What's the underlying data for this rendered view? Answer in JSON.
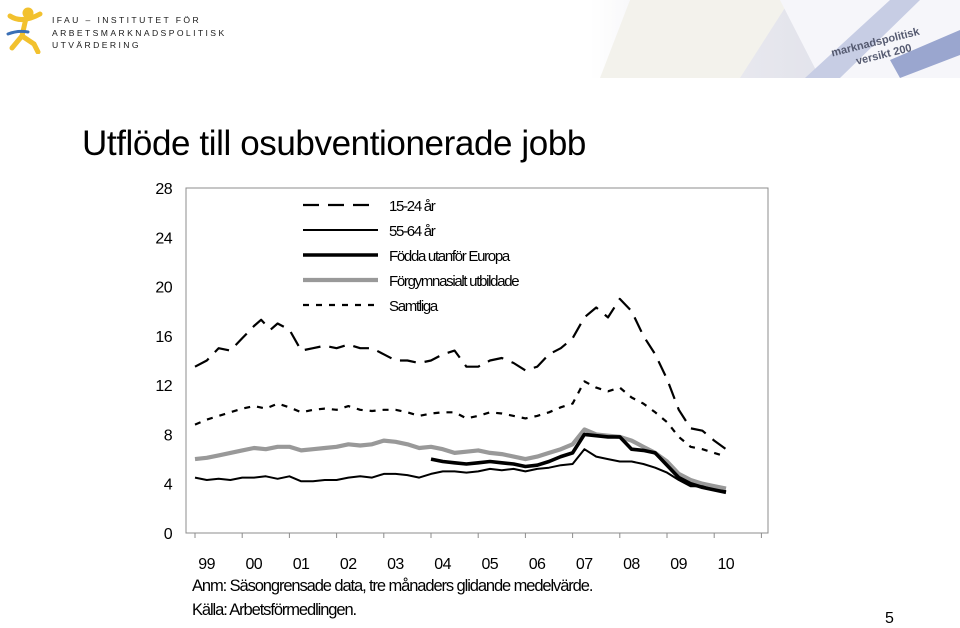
{
  "header": {
    "org_lines": [
      "IFAU – INSTITUTET FÖR",
      "ARBETSMARKNADSPOLITISK",
      "UTVÄRDERING"
    ],
    "banner_texts": [
      "marknadspolitisk",
      "versikt 200"
    ]
  },
  "slide": {
    "title": "Utflöde till osubventionerade jobb",
    "note": "Anm: Säsongrensade data, tre månaders glidande medelvärde.",
    "source": "Källa: Arbetsförmedlingen.",
    "page_number": "5"
  },
  "chart_data": {
    "type": "line",
    "title": "",
    "xlabel": "",
    "ylabel": "",
    "ylim": [
      0,
      28
    ],
    "yticks": [
      "0",
      "4",
      "8",
      "12",
      "16",
      "20",
      "24",
      "28"
    ],
    "xticks": [
      "99",
      "00",
      "01",
      "02",
      "03",
      "04",
      "05",
      "06",
      "07",
      "08",
      "09",
      "10"
    ],
    "xlim": [
      1999.0,
      2010.25
    ],
    "legend_position": "top-left",
    "series": [
      {
        "name": "15-24 år",
        "style": "long-dash",
        "color": "#000000",
        "points": [
          [
            1999.0,
            13.5
          ],
          [
            1999.25,
            14.0
          ],
          [
            1999.5,
            15.0
          ],
          [
            1999.75,
            14.8
          ],
          [
            2000.0,
            15.8
          ],
          [
            2000.25,
            16.8
          ],
          [
            2000.4,
            17.3
          ],
          [
            2000.6,
            16.5
          ],
          [
            2000.75,
            17.0
          ],
          [
            2001.0,
            16.5
          ],
          [
            2001.25,
            14.8
          ],
          [
            2001.5,
            15.0
          ],
          [
            2001.75,
            15.2
          ],
          [
            2002.0,
            15.0
          ],
          [
            2002.25,
            15.3
          ],
          [
            2002.5,
            15.0
          ],
          [
            2002.75,
            15.0
          ],
          [
            2003.0,
            14.5
          ],
          [
            2003.25,
            14.0
          ],
          [
            2003.5,
            14.0
          ],
          [
            2003.75,
            13.8
          ],
          [
            2004.0,
            14.0
          ],
          [
            2004.25,
            14.5
          ],
          [
            2004.5,
            14.8
          ],
          [
            2004.75,
            13.5
          ],
          [
            2005.0,
            13.5
          ],
          [
            2005.25,
            14.0
          ],
          [
            2005.5,
            14.2
          ],
          [
            2005.75,
            13.8
          ],
          [
            2006.0,
            13.2
          ],
          [
            2006.25,
            13.5
          ],
          [
            2006.5,
            14.5
          ],
          [
            2006.75,
            15.0
          ],
          [
            2007.0,
            15.8
          ],
          [
            2007.25,
            17.5
          ],
          [
            2007.5,
            18.3
          ],
          [
            2007.75,
            17.5
          ],
          [
            2008.0,
            19.0
          ],
          [
            2008.25,
            18.0
          ],
          [
            2008.5,
            16.0
          ],
          [
            2008.75,
            14.5
          ],
          [
            2009.0,
            12.5
          ],
          [
            2009.25,
            10.0
          ],
          [
            2009.5,
            8.5
          ],
          [
            2009.75,
            8.3
          ],
          [
            2010.0,
            7.5
          ],
          [
            2010.25,
            6.8
          ]
        ]
      },
      {
        "name": "55-64 år",
        "style": "solid-thin",
        "color": "#000000",
        "points": [
          [
            1999.0,
            4.5
          ],
          [
            1999.25,
            4.3
          ],
          [
            1999.5,
            4.4
          ],
          [
            1999.75,
            4.3
          ],
          [
            2000.0,
            4.5
          ],
          [
            2000.25,
            4.5
          ],
          [
            2000.5,
            4.6
          ],
          [
            2000.75,
            4.4
          ],
          [
            2001.0,
            4.6
          ],
          [
            2001.25,
            4.2
          ],
          [
            2001.5,
            4.2
          ],
          [
            2001.75,
            4.3
          ],
          [
            2002.0,
            4.3
          ],
          [
            2002.25,
            4.5
          ],
          [
            2002.5,
            4.6
          ],
          [
            2002.75,
            4.5
          ],
          [
            2003.0,
            4.8
          ],
          [
            2003.25,
            4.8
          ],
          [
            2003.5,
            4.7
          ],
          [
            2003.75,
            4.5
          ],
          [
            2004.0,
            4.8
          ],
          [
            2004.25,
            5.0
          ],
          [
            2004.5,
            5.0
          ],
          [
            2004.75,
            4.9
          ],
          [
            2005.0,
            5.0
          ],
          [
            2005.25,
            5.2
          ],
          [
            2005.5,
            5.1
          ],
          [
            2005.75,
            5.2
          ],
          [
            2006.0,
            5.0
          ],
          [
            2006.25,
            5.2
          ],
          [
            2006.5,
            5.3
          ],
          [
            2006.75,
            5.5
          ],
          [
            2007.0,
            5.6
          ],
          [
            2007.25,
            6.8
          ],
          [
            2007.5,
            6.2
          ],
          [
            2007.75,
            6.0
          ],
          [
            2008.0,
            5.8
          ],
          [
            2008.25,
            5.8
          ],
          [
            2008.5,
            5.6
          ],
          [
            2008.75,
            5.3
          ],
          [
            2009.0,
            4.9
          ],
          [
            2009.25,
            4.3
          ],
          [
            2009.5,
            3.8
          ],
          [
            2009.75,
            3.8
          ],
          [
            2010.0,
            3.5
          ],
          [
            2010.25,
            3.4
          ]
        ]
      },
      {
        "name": "Födda utanför Europa",
        "style": "solid-thick",
        "color": "#000000",
        "points": [
          [
            2004.0,
            6.0
          ],
          [
            2004.25,
            5.8
          ],
          [
            2004.5,
            5.7
          ],
          [
            2004.75,
            5.6
          ],
          [
            2005.0,
            5.7
          ],
          [
            2005.25,
            5.8
          ],
          [
            2005.5,
            5.7
          ],
          [
            2005.75,
            5.6
          ],
          [
            2006.0,
            5.4
          ],
          [
            2006.25,
            5.5
          ],
          [
            2006.5,
            5.8
          ],
          [
            2006.75,
            6.2
          ],
          [
            2007.0,
            6.5
          ],
          [
            2007.25,
            8.0
          ],
          [
            2007.5,
            7.9
          ],
          [
            2007.75,
            7.8
          ],
          [
            2008.0,
            7.8
          ],
          [
            2008.25,
            6.8
          ],
          [
            2008.5,
            6.7
          ],
          [
            2008.75,
            6.5
          ],
          [
            2009.0,
            5.5
          ],
          [
            2009.25,
            4.5
          ],
          [
            2009.5,
            4.0
          ],
          [
            2009.75,
            3.7
          ],
          [
            2010.0,
            3.5
          ],
          [
            2010.25,
            3.3
          ]
        ]
      },
      {
        "name": "Förgymnasialt utbildade",
        "style": "solid-gray",
        "color": "#999999",
        "points": [
          [
            1999.0,
            6.0
          ],
          [
            1999.25,
            6.1
          ],
          [
            1999.5,
            6.3
          ],
          [
            1999.75,
            6.5
          ],
          [
            2000.0,
            6.7
          ],
          [
            2000.25,
            6.9
          ],
          [
            2000.5,
            6.8
          ],
          [
            2000.75,
            7.0
          ],
          [
            2001.0,
            7.0
          ],
          [
            2001.25,
            6.7
          ],
          [
            2001.5,
            6.8
          ],
          [
            2001.75,
            6.9
          ],
          [
            2002.0,
            7.0
          ],
          [
            2002.25,
            7.2
          ],
          [
            2002.5,
            7.1
          ],
          [
            2002.75,
            7.2
          ],
          [
            2003.0,
            7.5
          ],
          [
            2003.25,
            7.4
          ],
          [
            2003.5,
            7.2
          ],
          [
            2003.75,
            6.9
          ],
          [
            2004.0,
            7.0
          ],
          [
            2004.25,
            6.8
          ],
          [
            2004.5,
            6.5
          ],
          [
            2004.75,
            6.6
          ],
          [
            2005.0,
            6.7
          ],
          [
            2005.25,
            6.5
          ],
          [
            2005.5,
            6.4
          ],
          [
            2005.75,
            6.2
          ],
          [
            2006.0,
            6.0
          ],
          [
            2006.25,
            6.2
          ],
          [
            2006.5,
            6.5
          ],
          [
            2006.75,
            6.8
          ],
          [
            2007.0,
            7.2
          ],
          [
            2007.25,
            8.4
          ],
          [
            2007.5,
            8.0
          ],
          [
            2007.75,
            7.9
          ],
          [
            2008.0,
            7.8
          ],
          [
            2008.25,
            7.5
          ],
          [
            2008.5,
            7.0
          ],
          [
            2008.75,
            6.5
          ],
          [
            2009.0,
            5.8
          ],
          [
            2009.25,
            4.8
          ],
          [
            2009.5,
            4.3
          ],
          [
            2009.75,
            4.0
          ],
          [
            2010.0,
            3.8
          ],
          [
            2010.25,
            3.6
          ]
        ]
      },
      {
        "name": "Samtliga",
        "style": "short-dash",
        "color": "#000000",
        "points": [
          [
            1999.0,
            8.8
          ],
          [
            1999.25,
            9.2
          ],
          [
            1999.5,
            9.5
          ],
          [
            1999.75,
            9.8
          ],
          [
            2000.0,
            10.1
          ],
          [
            2000.25,
            10.3
          ],
          [
            2000.5,
            10.1
          ],
          [
            2000.75,
            10.5
          ],
          [
            2001.0,
            10.2
          ],
          [
            2001.25,
            9.8
          ],
          [
            2001.5,
            10.0
          ],
          [
            2001.75,
            10.1
          ],
          [
            2002.0,
            10.0
          ],
          [
            2002.25,
            10.3
          ],
          [
            2002.5,
            10.0
          ],
          [
            2002.75,
            9.9
          ],
          [
            2003.0,
            10.0
          ],
          [
            2003.25,
            10.0
          ],
          [
            2003.5,
            9.8
          ],
          [
            2003.75,
            9.5
          ],
          [
            2004.0,
            9.7
          ],
          [
            2004.25,
            9.8
          ],
          [
            2004.5,
            9.8
          ],
          [
            2004.75,
            9.3
          ],
          [
            2005.0,
            9.5
          ],
          [
            2005.25,
            9.8
          ],
          [
            2005.5,
            9.7
          ],
          [
            2005.75,
            9.5
          ],
          [
            2006.0,
            9.3
          ],
          [
            2006.25,
            9.5
          ],
          [
            2006.5,
            9.8
          ],
          [
            2006.75,
            10.2
          ],
          [
            2007.0,
            10.5
          ],
          [
            2007.25,
            12.3
          ],
          [
            2007.5,
            11.8
          ],
          [
            2007.75,
            11.5
          ],
          [
            2008.0,
            11.8
          ],
          [
            2008.25,
            11.0
          ],
          [
            2008.5,
            10.5
          ],
          [
            2008.75,
            9.8
          ],
          [
            2009.0,
            9.0
          ],
          [
            2009.25,
            7.8
          ],
          [
            2009.5,
            7.0
          ],
          [
            2009.75,
            6.8
          ],
          [
            2010.0,
            6.5
          ],
          [
            2010.25,
            6.2
          ]
        ]
      }
    ]
  }
}
